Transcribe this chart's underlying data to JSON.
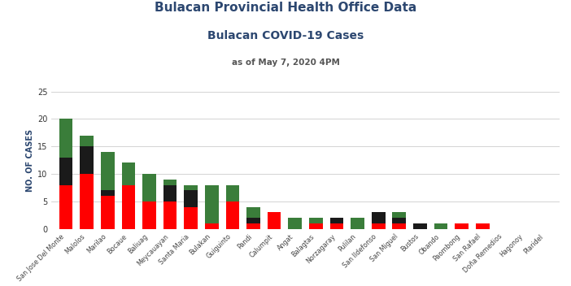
{
  "title_line1": "Bulacan Provincial Health Office Data",
  "title_line2": "Bulacan COVID-19 Cases",
  "subtitle": "as of May 7, 2020 4PM",
  "ylabel": "NO. OF CASES",
  "categories": [
    "San Jose Del Monte",
    "Malolos",
    "Marilao",
    "Bocaue",
    "Baliuag",
    "Meycauayan",
    "Santa Maria",
    "Bulakan",
    "Guiguinto",
    "Pandi",
    "Calumpit",
    "Angat",
    "Balagtas",
    "Norzagaray",
    "Pulilan",
    "San Ildefonso",
    "San Miguel",
    "Bustos",
    "Obando",
    "Paombong",
    "San Rafael",
    "Doña Remedios",
    "Hagonoy",
    "Plaridel"
  ],
  "active": [
    8,
    10,
    6,
    8,
    5,
    5,
    4,
    1,
    5,
    1,
    3,
    0,
    1,
    1,
    0,
    1,
    1,
    0,
    0,
    1,
    1,
    0,
    0,
    0
  ],
  "death": [
    5,
    5,
    1,
    0,
    0,
    3,
    3,
    0,
    0,
    1,
    0,
    0,
    0,
    1,
    0,
    2,
    1,
    1,
    0,
    0,
    0,
    0,
    0,
    0
  ],
  "recovered": [
    7,
    2,
    7,
    4,
    5,
    1,
    1,
    7,
    3,
    2,
    0,
    2,
    1,
    0,
    2,
    0,
    1,
    0,
    1,
    0,
    0,
    0,
    0,
    0
  ],
  "active_color": "#FF0000",
  "death_color": "#1a1a1a",
  "recovered_color": "#3a7d3a",
  "title_color": "#2c4770",
  "background_color": "#ffffff",
  "grid_color": "#cccccc",
  "ylim": [
    0,
    25
  ],
  "yticks": [
    0,
    5,
    10,
    15,
    20,
    25
  ]
}
